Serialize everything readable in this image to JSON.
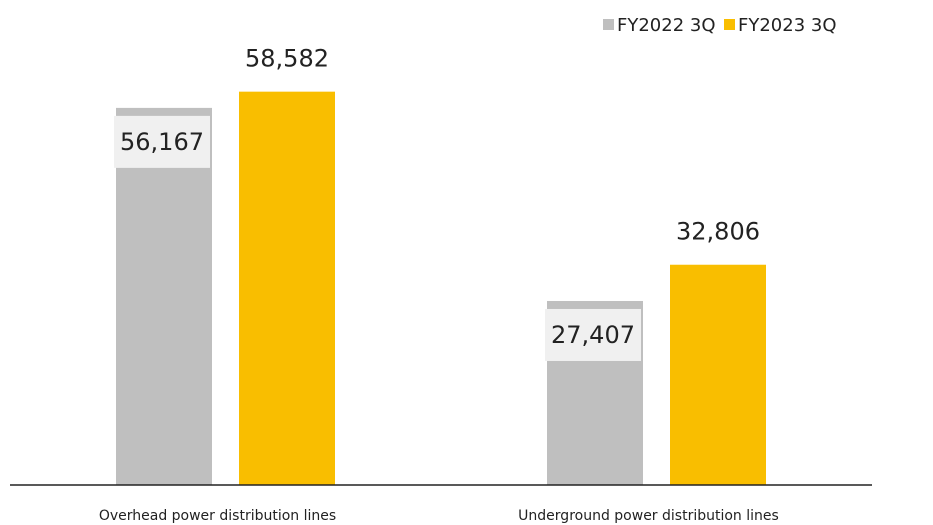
{
  "chart_data": {
    "type": "bar",
    "categories": [
      "Overhead power distribution lines",
      "Underground power distribution lines"
    ],
    "series": [
      {
        "name": "FY2022 3Q",
        "color": "#bfbfbf",
        "values": [
          56167,
          27407
        ],
        "value_labels": [
          "56,167",
          "27,407"
        ]
      },
      {
        "name": "FY2023 3Q",
        "color": "#f9be00",
        "values": [
          58582,
          32806
        ],
        "value_labels": [
          "58,582",
          "32,806"
        ]
      }
    ],
    "ylim": [
      0,
      70000
    ],
    "legend": "top-right"
  }
}
